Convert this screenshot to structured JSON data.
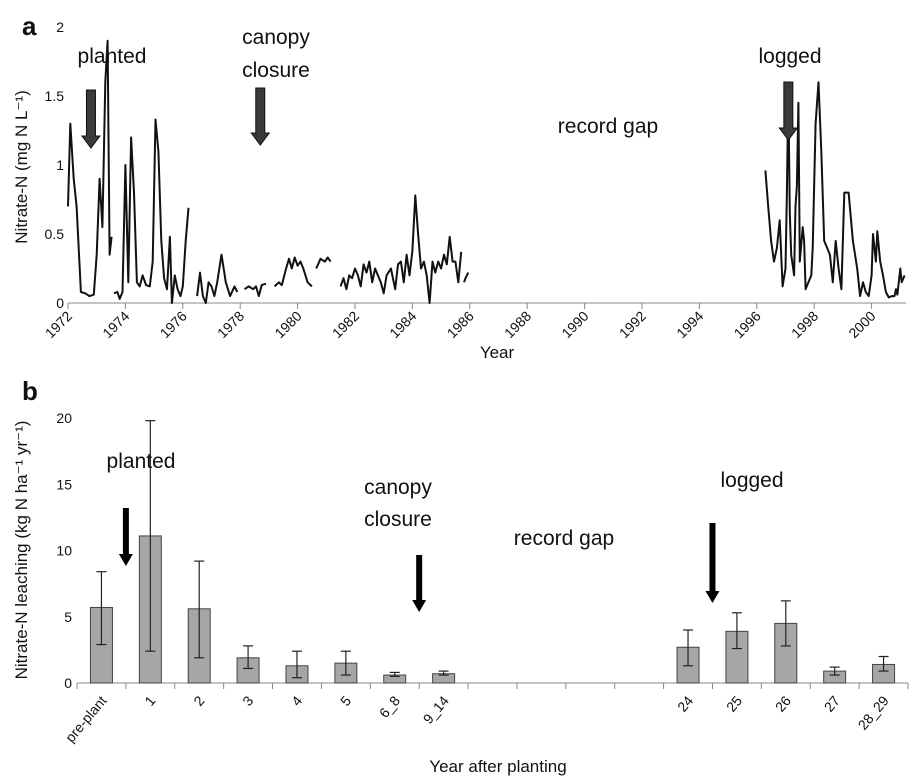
{
  "chart_data": [
    {
      "panel_label": "a",
      "type": "line",
      "xlabel": "Year",
      "ylabel": "Nitrate-N (mg N L⁻¹)",
      "xlim": [
        1972,
        2001.2
      ],
      "ylim": [
        0,
        2
      ],
      "x_ticks": [
        "1972",
        "1974",
        "1976",
        "1978",
        "1980",
        "1982",
        "1984",
        "1986",
        "1988",
        "1990",
        "1992",
        "1994",
        "1996",
        "1998",
        "2000"
      ],
      "y_ticks": [
        "0",
        "0.5",
        "1",
        "1.5",
        "2"
      ],
      "annotations": [
        {
          "text": "planted"
        },
        {
          "text": "canopy"
        },
        {
          "text": "closure"
        },
        {
          "text": "record gap"
        },
        {
          "text": "logged"
        }
      ],
      "annotation_arrows_x": [
        1972.8,
        1978.7,
        1997.1
      ],
      "color": "#111111",
      "segments": [
        [
          [
            1972.0,
            0.7
          ],
          [
            1972.08,
            1.3
          ],
          [
            1972.2,
            0.9
          ],
          [
            1972.3,
            0.7
          ],
          [
            1972.45,
            0.08
          ],
          [
            1972.6,
            0.07
          ],
          [
            1972.75,
            0.05
          ],
          [
            1972.9,
            0.06
          ],
          [
            1973.0,
            0.35
          ],
          [
            1973.1,
            0.9
          ],
          [
            1973.2,
            0.55
          ],
          [
            1973.3,
            1.6
          ],
          [
            1973.38,
            1.9
          ],
          [
            1973.45,
            0.35
          ],
          [
            1973.52,
            0.48
          ]
        ],
        [
          [
            1973.6,
            0.07
          ],
          [
            1973.72,
            0.08
          ],
          [
            1973.8,
            0.03
          ],
          [
            1973.9,
            0.08
          ],
          [
            1974.0,
            1.0
          ],
          [
            1974.1,
            0.15
          ],
          [
            1974.2,
            1.2
          ],
          [
            1974.3,
            0.8
          ],
          [
            1974.4,
            0.15
          ],
          [
            1974.5,
            0.12
          ],
          [
            1974.6,
            0.2
          ],
          [
            1974.72,
            0.13
          ],
          [
            1974.85,
            0.12
          ],
          [
            1974.95,
            0.3
          ],
          [
            1975.05,
            1.33
          ],
          [
            1975.15,
            1.1
          ],
          [
            1975.25,
            0.45
          ],
          [
            1975.35,
            0.18
          ],
          [
            1975.45,
            0.1
          ],
          [
            1975.55,
            0.48
          ],
          [
            1975.62,
            0.0
          ],
          [
            1975.72,
            0.2
          ],
          [
            1975.82,
            0.1
          ],
          [
            1975.92,
            0.05
          ],
          [
            1976.0,
            0.12
          ],
          [
            1976.1,
            0.45
          ],
          [
            1976.2,
            0.69
          ]
        ],
        [
          [
            1976.5,
            0.05
          ],
          [
            1976.6,
            0.22
          ],
          [
            1976.7,
            0.05
          ],
          [
            1976.8,
            0.0
          ],
          [
            1976.9,
            0.15
          ],
          [
            1977.0,
            0.12
          ],
          [
            1977.1,
            0.05
          ],
          [
            1977.2,
            0.15
          ],
          [
            1977.35,
            0.35
          ],
          [
            1977.5,
            0.15
          ],
          [
            1977.65,
            0.05
          ],
          [
            1977.8,
            0.12
          ],
          [
            1977.9,
            0.08
          ]
        ],
        [
          [
            1978.15,
            0.1
          ],
          [
            1978.3,
            0.12
          ],
          [
            1978.45,
            0.1
          ],
          [
            1978.55,
            0.12
          ],
          [
            1978.65,
            0.05
          ],
          [
            1978.75,
            0.13
          ],
          [
            1978.9,
            0.14
          ]
        ],
        [
          [
            1979.2,
            0.12
          ],
          [
            1979.35,
            0.15
          ],
          [
            1979.45,
            0.13
          ],
          [
            1979.6,
            0.25
          ],
          [
            1979.7,
            0.32
          ],
          [
            1979.8,
            0.25
          ],
          [
            1979.9,
            0.33
          ],
          [
            1980.0,
            0.27
          ],
          [
            1980.1,
            0.3
          ],
          [
            1980.2,
            0.25
          ],
          [
            1980.35,
            0.15
          ],
          [
            1980.5,
            0.12
          ]
        ],
        [
          [
            1980.65,
            0.25
          ],
          [
            1980.8,
            0.32
          ],
          [
            1980.95,
            0.3
          ],
          [
            1981.05,
            0.33
          ],
          [
            1981.15,
            0.3
          ]
        ],
        [
          [
            1981.5,
            0.12
          ],
          [
            1981.6,
            0.18
          ],
          [
            1981.7,
            0.1
          ],
          [
            1981.8,
            0.2
          ],
          [
            1981.9,
            0.18
          ],
          [
            1982.0,
            0.25
          ],
          [
            1982.1,
            0.2
          ],
          [
            1982.2,
            0.12
          ],
          [
            1982.3,
            0.28
          ],
          [
            1982.4,
            0.22
          ],
          [
            1982.5,
            0.3
          ],
          [
            1982.6,
            0.15
          ],
          [
            1982.7,
            0.25
          ],
          [
            1982.8,
            0.2
          ],
          [
            1982.9,
            0.15
          ],
          [
            1983.0,
            0.07
          ],
          [
            1983.1,
            0.2
          ],
          [
            1983.25,
            0.25
          ],
          [
            1983.4,
            0.1
          ],
          [
            1983.5,
            0.28
          ],
          [
            1983.6,
            0.3
          ],
          [
            1983.7,
            0.15
          ],
          [
            1983.8,
            0.35
          ],
          [
            1983.9,
            0.2
          ],
          [
            1984.0,
            0.38
          ],
          [
            1984.1,
            0.78
          ],
          [
            1984.2,
            0.5
          ],
          [
            1984.3,
            0.25
          ],
          [
            1984.4,
            0.3
          ],
          [
            1984.5,
            0.2
          ],
          [
            1984.6,
            0.0
          ],
          [
            1984.7,
            0.3
          ],
          [
            1984.8,
            0.22
          ],
          [
            1984.9,
            0.3
          ],
          [
            1985.0,
            0.25
          ],
          [
            1985.1,
            0.35
          ],
          [
            1985.2,
            0.28
          ],
          [
            1985.3,
            0.48
          ],
          [
            1985.4,
            0.3
          ],
          [
            1985.5,
            0.3
          ],
          [
            1985.6,
            0.15
          ],
          [
            1985.7,
            0.37
          ]
        ],
        [
          [
            1985.8,
            0.15
          ],
          [
            1985.85,
            0.18
          ],
          [
            1985.95,
            0.22
          ]
        ],
        [
          [
            1996.3,
            0.96
          ],
          [
            1996.4,
            0.7
          ],
          [
            1996.5,
            0.45
          ],
          [
            1996.6,
            0.3
          ],
          [
            1996.7,
            0.4
          ],
          [
            1996.8,
            0.6
          ],
          [
            1996.85,
            0.35
          ],
          [
            1996.9,
            0.12
          ],
          [
            1997.0,
            0.25
          ],
          [
            1997.05,
            0.8
          ],
          [
            1997.1,
            1.55
          ],
          [
            1997.15,
            0.65
          ],
          [
            1997.2,
            0.35
          ],
          [
            1997.3,
            0.2
          ],
          [
            1997.35,
            0.7
          ],
          [
            1997.4,
            0.85
          ],
          [
            1997.45,
            1.45
          ],
          [
            1997.5,
            0.3
          ],
          [
            1997.6,
            0.55
          ],
          [
            1997.65,
            0.45
          ],
          [
            1997.7,
            0.1
          ],
          [
            1997.8,
            0.15
          ],
          [
            1997.9,
            0.2
          ],
          [
            1997.95,
            0.4
          ],
          [
            1998.05,
            1.3
          ],
          [
            1998.15,
            1.6
          ],
          [
            1998.25,
            1.1
          ],
          [
            1998.35,
            0.45
          ],
          [
            1998.45,
            0.4
          ],
          [
            1998.55,
            0.35
          ],
          [
            1998.65,
            0.15
          ],
          [
            1998.75,
            0.45
          ],
          [
            1998.85,
            0.25
          ],
          [
            1998.95,
            0.1
          ],
          [
            1999.05,
            0.8
          ],
          [
            1999.2,
            0.8
          ],
          [
            1999.35,
            0.45
          ],
          [
            1999.5,
            0.25
          ],
          [
            1999.6,
            0.05
          ],
          [
            1999.7,
            0.15
          ],
          [
            1999.8,
            0.08
          ],
          [
            1999.9,
            0.05
          ],
          [
            2000.0,
            0.2
          ],
          [
            2000.05,
            0.5
          ],
          [
            2000.15,
            0.3
          ],
          [
            2000.2,
            0.52
          ],
          [
            2000.3,
            0.3
          ],
          [
            2000.4,
            0.2
          ],
          [
            2000.5,
            0.08
          ],
          [
            2000.6,
            0.04
          ],
          [
            2000.7,
            0.05
          ],
          [
            2000.8,
            0.05
          ],
          [
            2000.85,
            0.1
          ],
          [
            2000.9,
            0.06
          ],
          [
            2001.0,
            0.25
          ],
          [
            2001.05,
            0.15
          ],
          [
            2001.15,
            0.2
          ]
        ]
      ]
    },
    {
      "panel_label": "b",
      "type": "bar",
      "xlabel": "Year after planting",
      "ylabel": "Nitrate-N leaching (kg N ha⁻¹ yr⁻¹)",
      "ylim": [
        0,
        20
      ],
      "y_ticks": [
        "0",
        "5",
        "10",
        "15",
        "20"
      ],
      "categories": [
        "pre-plant",
        "1",
        "2",
        "3",
        "4",
        "5",
        "6_8",
        "9_14",
        "",
        "",
        "",
        "",
        "24",
        "25",
        "26",
        "27",
        "28_29"
      ],
      "values": [
        5.7,
        11.1,
        5.6,
        1.9,
        1.3,
        1.5,
        0.6,
        0.7,
        null,
        null,
        null,
        null,
        2.7,
        3.9,
        4.5,
        0.9,
        1.4
      ],
      "error_low": [
        2.9,
        2.4,
        1.9,
        1.1,
        0.4,
        0.6,
        0.5,
        0.6,
        null,
        null,
        null,
        null,
        1.3,
        2.6,
        2.8,
        0.6,
        0.9
      ],
      "error_high": [
        8.4,
        19.8,
        9.2,
        2.8,
        2.4,
        2.4,
        0.8,
        0.9,
        null,
        null,
        null,
        null,
        4.0,
        5.3,
        6.2,
        1.2,
        2.0
      ],
      "bar_color": "#a6a6a6",
      "annotations": [
        {
          "text": "planted"
        },
        {
          "text": "canopy"
        },
        {
          "text": "closure"
        },
        {
          "text": "record gap"
        },
        {
          "text": "logged"
        }
      ]
    }
  ]
}
